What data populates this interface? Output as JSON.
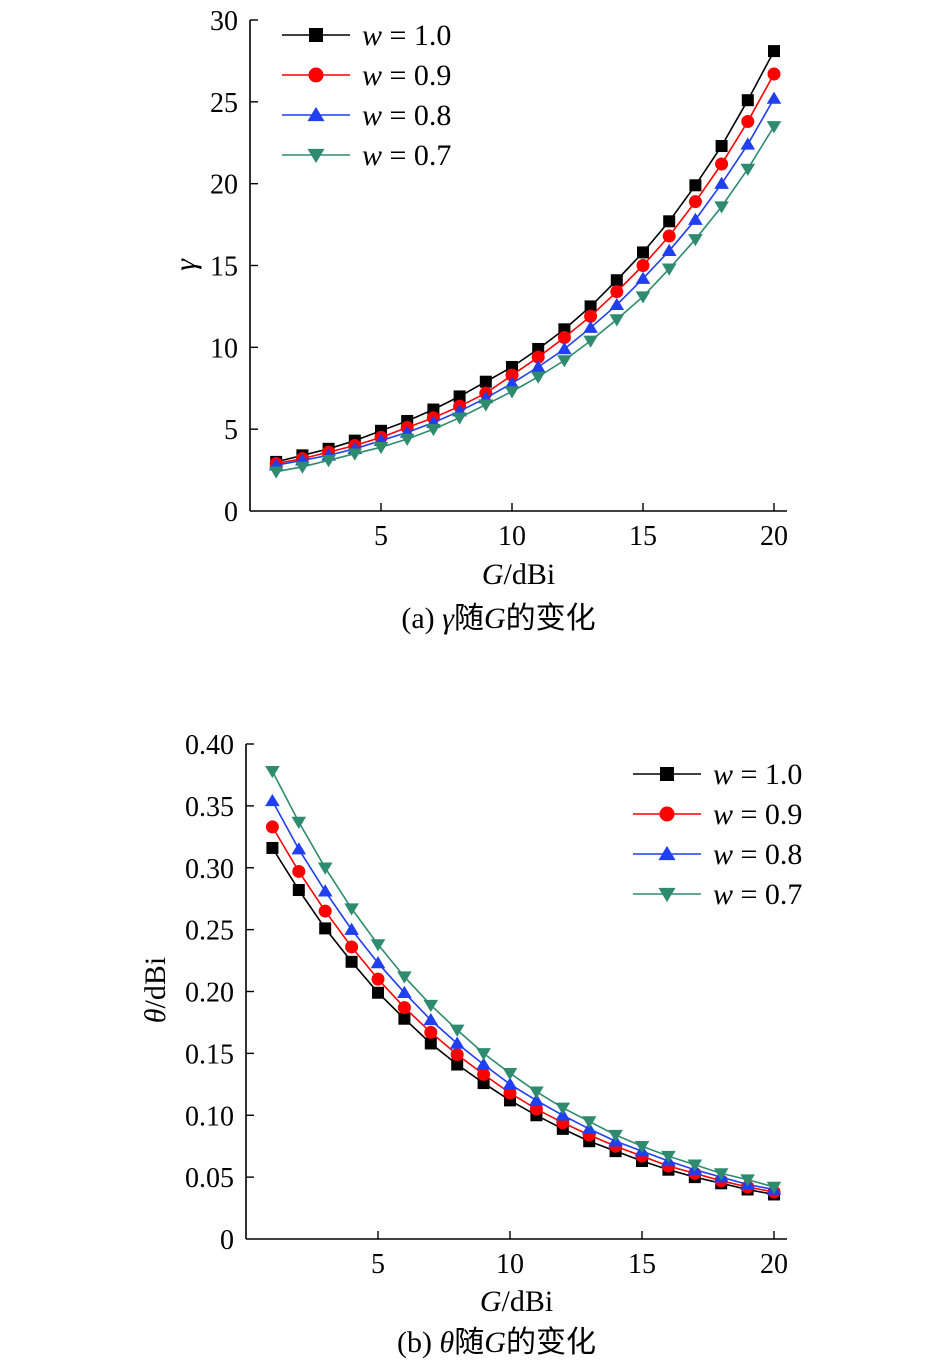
{
  "chart_data": [
    {
      "type": "line",
      "title": "",
      "caption_prefix": "(a) ",
      "caption_symbol": "γ",
      "caption_mid": "随",
      "caption_var": "G",
      "caption_suffix": "的变化",
      "xlabel_var": "G",
      "xlabel_unit": "/dBi",
      "ylabel": "γ",
      "ylabel_unit": "",
      "xlim": [
        0,
        20
      ],
      "ylim": [
        0,
        30
      ],
      "xticks": [
        5,
        10,
        15,
        20
      ],
      "yticks": [
        0,
        5,
        10,
        15,
        20,
        25,
        30
      ],
      "ytick_labels": [
        "0",
        "5",
        "10",
        "15",
        "20",
        "25",
        "30"
      ],
      "grid": false,
      "legend_position": "top-left",
      "x": [
        1,
        2,
        3,
        4,
        5,
        6,
        7,
        8,
        9,
        10,
        11,
        12,
        13,
        14,
        15,
        16,
        17,
        18,
        19,
        20
      ],
      "series": [
        {
          "name": "w = 1.0",
          "name_var": "w",
          "name_val": " = 1.0",
          "color": "#000000",
          "marker": "square",
          "values": [
            3.0,
            3.4,
            3.8,
            4.3,
            4.9,
            5.5,
            6.2,
            7.0,
            7.9,
            8.8,
            9.9,
            11.1,
            12.5,
            14.1,
            15.8,
            17.7,
            19.9,
            22.3,
            25.1,
            28.1
          ]
        },
        {
          "name": "w = 0.9",
          "name_var": "w",
          "name_val": " = 0.9",
          "color": "#ff0000",
          "marker": "circle",
          "values": [
            2.9,
            3.2,
            3.6,
            4.0,
            4.5,
            5.1,
            5.7,
            6.4,
            7.2,
            8.3,
            9.4,
            10.6,
            11.9,
            13.4,
            15.0,
            16.8,
            18.9,
            21.2,
            23.8,
            26.7
          ]
        },
        {
          "name": "w = 0.8",
          "name_var": "w",
          "name_val": " = 0.8",
          "color": "#1f3ff0",
          "marker": "triangle-up",
          "values": [
            2.8,
            3.1,
            3.4,
            3.8,
            4.3,
            4.8,
            5.4,
            6.1,
            6.9,
            7.8,
            8.8,
            9.9,
            11.2,
            12.6,
            14.2,
            15.9,
            17.8,
            20.0,
            22.4,
            25.2
          ]
        },
        {
          "name": "w = 0.7",
          "name_var": "w",
          "name_val": " = 0.7",
          "color": "#2e8b6e",
          "marker": "triangle-down",
          "values": [
            2.4,
            2.7,
            3.1,
            3.5,
            3.9,
            4.4,
            5.0,
            5.7,
            6.5,
            7.3,
            8.2,
            9.2,
            10.4,
            11.7,
            13.1,
            14.8,
            16.6,
            18.6,
            20.9,
            23.5
          ]
        }
      ]
    },
    {
      "type": "line",
      "title": "",
      "caption_prefix": "(b) ",
      "caption_symbol": "θ",
      "caption_mid": "随",
      "caption_var": "G",
      "caption_suffix": "的变化",
      "xlabel_var": "G",
      "xlabel_unit": "/dBi",
      "ylabel": "θ",
      "ylabel_unit": "/dBi",
      "xlim": [
        0,
        20
      ],
      "ylim": [
        0,
        0.4
      ],
      "xticks": [
        5,
        10,
        15,
        20
      ],
      "yticks": [
        0,
        0.05,
        0.1,
        0.15,
        0.2,
        0.25,
        0.3,
        0.35,
        0.4
      ],
      "ytick_labels": [
        "0",
        "0.05",
        "0.10",
        "0.15",
        "0.20",
        "0.25",
        "0.30",
        "0.35",
        "0.40"
      ],
      "grid": false,
      "legend_position": "top-right",
      "x": [
        1,
        2,
        3,
        4,
        5,
        6,
        7,
        8,
        9,
        10,
        11,
        12,
        13,
        14,
        15,
        16,
        17,
        18,
        19,
        20
      ],
      "series": [
        {
          "name": "w = 1.0",
          "name_var": "w",
          "name_val": " = 1.0",
          "color": "#000000",
          "marker": "square",
          "values": [
            0.316,
            0.282,
            0.251,
            0.224,
            0.199,
            0.178,
            0.158,
            0.141,
            0.126,
            0.112,
            0.1,
            0.089,
            0.079,
            0.071,
            0.063,
            0.056,
            0.05,
            0.045,
            0.04,
            0.036
          ]
        },
        {
          "name": "w = 0.9",
          "name_var": "w",
          "name_val": " = 0.9",
          "color": "#ff0000",
          "marker": "circle",
          "values": [
            0.333,
            0.297,
            0.265,
            0.236,
            0.21,
            0.187,
            0.167,
            0.149,
            0.133,
            0.118,
            0.105,
            0.094,
            0.084,
            0.075,
            0.067,
            0.059,
            0.053,
            0.047,
            0.042,
            0.038
          ]
        },
        {
          "name": "w = 0.8",
          "name_var": "w",
          "name_val": " = 0.8",
          "color": "#1f3ff0",
          "marker": "triangle-up",
          "values": [
            0.354,
            0.315,
            0.281,
            0.25,
            0.223,
            0.199,
            0.177,
            0.158,
            0.141,
            0.125,
            0.112,
            0.1,
            0.089,
            0.079,
            0.071,
            0.063,
            0.056,
            0.05,
            0.044,
            0.04
          ]
        },
        {
          "name": "w = 0.7",
          "name_var": "w",
          "name_val": " = 0.7",
          "color": "#2e8b6e",
          "marker": "triangle-down",
          "values": [
            0.378,
            0.337,
            0.3,
            0.267,
            0.238,
            0.212,
            0.189,
            0.169,
            0.15,
            0.134,
            0.119,
            0.106,
            0.095,
            0.084,
            0.075,
            0.067,
            0.06,
            0.053,
            0.048,
            0.042
          ]
        }
      ]
    }
  ]
}
